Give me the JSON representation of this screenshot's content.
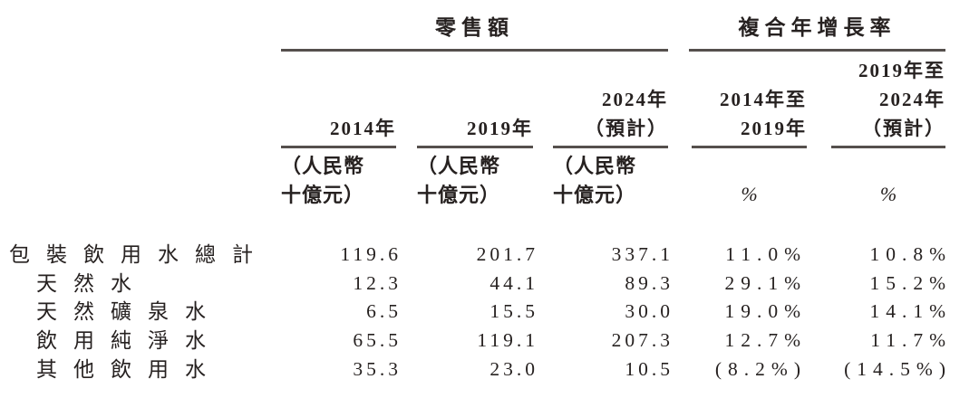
{
  "table": {
    "group_headers": [
      {
        "label": "零售額"
      },
      {
        "label": "複合年增長率"
      }
    ],
    "columns": [
      {
        "header_lines": [
          "2014年"
        ],
        "unit_lines": [
          "（人民幣",
          "十億元）"
        ]
      },
      {
        "header_lines": [
          "2019年"
        ],
        "unit_lines": [
          "（人民幣",
          "十億元）"
        ]
      },
      {
        "header_lines": [
          "2024年",
          "（預計）"
        ],
        "unit_lines": [
          "（人民幣",
          "十億元）"
        ]
      },
      {
        "header_lines": [
          "2014年至",
          "2019年"
        ],
        "unit_lines": [
          "%"
        ]
      },
      {
        "header_lines": [
          "2019年至",
          "2024年",
          "（預計）"
        ],
        "unit_lines": [
          "%"
        ]
      }
    ],
    "rows": [
      {
        "label": "包裝飲用水總計",
        "values": [
          "119.6",
          "201.7",
          "337.1",
          "11.0%",
          "10.8%"
        ]
      },
      {
        "label": "天然水",
        "values": [
          "12.3",
          "44.1",
          "89.3",
          "29.1%",
          "15.2%"
        ]
      },
      {
        "label": "天然礦泉水",
        "values": [
          "6.5",
          "15.5",
          "30.0",
          "19.0%",
          "14.1%"
        ]
      },
      {
        "label": "飲用純淨水",
        "values": [
          "65.5",
          "119.1",
          "207.3",
          "12.7%",
          "11.7%"
        ]
      },
      {
        "label": "其他飲用水",
        "values": [
          "35.3",
          "23.0",
          "10.5",
          "(8.2%)",
          "(14.5%)"
        ]
      }
    ]
  },
  "colors": {
    "text": "#262120",
    "rule": "#55504d"
  }
}
